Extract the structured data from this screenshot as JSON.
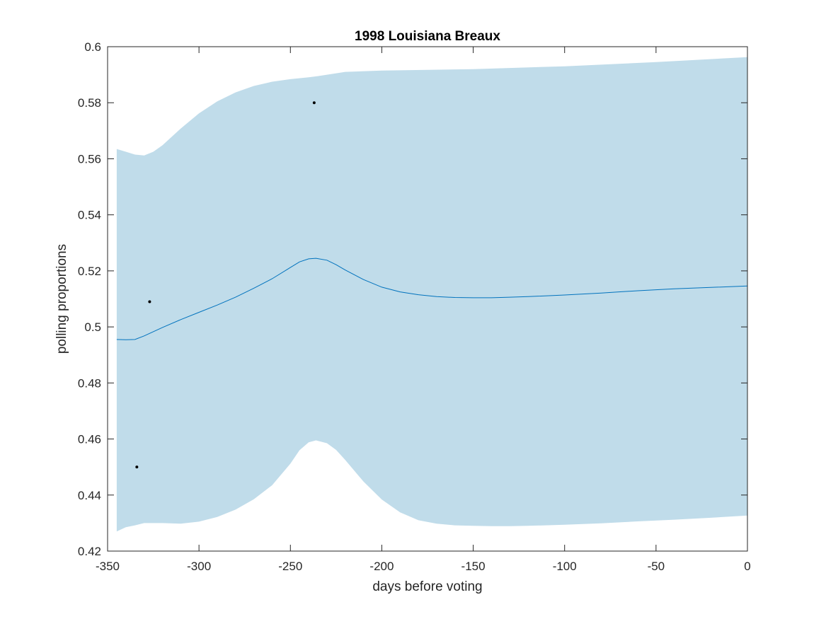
{
  "chart_data": {
    "type": "line",
    "title": "1998 Louisiana Breaux",
    "xlabel": "days before voting",
    "ylabel": "polling proportions",
    "xlim": [
      -350,
      0
    ],
    "ylim": [
      0.42,
      0.6
    ],
    "xticks": [
      -350,
      -300,
      -250,
      -200,
      -150,
      -100,
      -50,
      0
    ],
    "xtick_labels": [
      "-350",
      "-300",
      "-250",
      "-200",
      "-150",
      "-100",
      "-50",
      "0"
    ],
    "yticks": [
      0.42,
      0.44,
      0.46,
      0.48,
      0.5,
      0.52,
      0.54,
      0.56,
      0.58,
      0.6
    ],
    "ytick_labels": [
      "0.42",
      "0.44",
      "0.46",
      "0.48",
      "0.5",
      "0.52",
      "0.54",
      "0.56",
      "0.58",
      "0.6"
    ],
    "grid": false,
    "colors": {
      "band": "#c0dcea",
      "line": "#0072bd",
      "points": "#000000",
      "axes": "#262626"
    },
    "mean_line": {
      "x": [
        -345,
        -340,
        -335,
        -330,
        -320,
        -310,
        -300,
        -290,
        -280,
        -270,
        -260,
        -250,
        -245,
        -240,
        -236,
        -230,
        -225,
        -220,
        -210,
        -200,
        -190,
        -180,
        -170,
        -160,
        -150,
        -140,
        -130,
        -120,
        -100,
        -80,
        -60,
        -40,
        -20,
        0
      ],
      "y": [
        0.4955,
        0.4954,
        0.4955,
        0.4968,
        0.4998,
        0.5026,
        0.5052,
        0.5078,
        0.5106,
        0.5138,
        0.5172,
        0.5212,
        0.5232,
        0.5243,
        0.5245,
        0.5238,
        0.5222,
        0.5203,
        0.5169,
        0.5142,
        0.5125,
        0.5115,
        0.5108,
        0.5105,
        0.5104,
        0.5104,
        0.5106,
        0.5108,
        0.5114,
        0.5121,
        0.5129,
        0.5136,
        0.5141,
        0.5146
      ]
    },
    "band_upper": {
      "x": [
        -345,
        -340,
        -335,
        -330,
        -325,
        -320,
        -310,
        -300,
        -290,
        -280,
        -270,
        -260,
        -250,
        -240,
        -235,
        -225,
        -220,
        -200,
        -150,
        -100,
        -50,
        0
      ],
      "y": [
        0.5635,
        0.5625,
        0.5615,
        0.5612,
        0.5625,
        0.5648,
        0.5708,
        0.5762,
        0.5805,
        0.5837,
        0.586,
        0.5875,
        0.5884,
        0.5891,
        0.5895,
        0.5905,
        0.591,
        0.5915,
        0.592,
        0.593,
        0.5945,
        0.5963
      ]
    },
    "band_lower": {
      "x": [
        -345,
        -340,
        -335,
        -330,
        -320,
        -310,
        -300,
        -290,
        -280,
        -270,
        -260,
        -250,
        -245,
        -240,
        -236,
        -230,
        -225,
        -220,
        -210,
        -200,
        -190,
        -180,
        -170,
        -160,
        -150,
        -140,
        -130,
        -120,
        -100,
        -80,
        -60,
        -40,
        -20,
        0
      ],
      "y": [
        0.427,
        0.4285,
        0.4292,
        0.43,
        0.43,
        0.4298,
        0.4305,
        0.4322,
        0.4348,
        0.4385,
        0.4435,
        0.4512,
        0.456,
        0.4588,
        0.4595,
        0.4585,
        0.4561,
        0.4525,
        0.4448,
        0.4384,
        0.4338,
        0.431,
        0.4298,
        0.4292,
        0.429,
        0.4289,
        0.4289,
        0.429,
        0.4294,
        0.4299,
        0.4306,
        0.4312,
        0.4319,
        0.4327
      ]
    },
    "points": [
      {
        "x": -237,
        "y": 0.58
      },
      {
        "x": -327,
        "y": 0.509
      },
      {
        "x": -334,
        "y": 0.45
      }
    ]
  }
}
